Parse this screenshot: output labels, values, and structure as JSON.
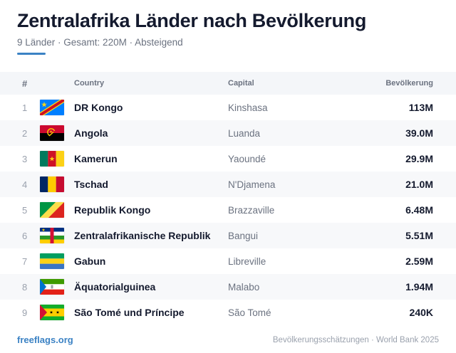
{
  "header": {
    "title": "Zentralafrika Länder nach Bevölkerung",
    "subtitle": "9 Länder · Gesamt: 220M · Absteigend"
  },
  "table": {
    "columns": {
      "rank": "#",
      "country": "Country",
      "capital": "Capital",
      "population": "Bevölkerung"
    },
    "rows": [
      {
        "rank": "1",
        "country": "DR Kongo",
        "capital": "Kinshasa",
        "population": "113M",
        "flag": "flag-cd-icon"
      },
      {
        "rank": "2",
        "country": "Angola",
        "capital": "Luanda",
        "population": "39.0M",
        "flag": "flag-ao-icon"
      },
      {
        "rank": "3",
        "country": "Kamerun",
        "capital": "Yaoundé",
        "population": "29.9M",
        "flag": "flag-cm-icon"
      },
      {
        "rank": "4",
        "country": "Tschad",
        "capital": "N'Djamena",
        "population": "21.0M",
        "flag": "flag-td-icon"
      },
      {
        "rank": "5",
        "country": "Republik Kongo",
        "capital": "Brazzaville",
        "population": "6.48M",
        "flag": "flag-cg-icon"
      },
      {
        "rank": "6",
        "country": "Zentralafrikanische Republik",
        "capital": "Bangui",
        "population": "5.51M",
        "flag": "flag-cf-icon"
      },
      {
        "rank": "7",
        "country": "Gabun",
        "capital": "Libreville",
        "population": "2.59M",
        "flag": "flag-ga-icon"
      },
      {
        "rank": "8",
        "country": "Äquatorialguinea",
        "capital": "Malabo",
        "population": "1.94M",
        "flag": "flag-gq-icon"
      },
      {
        "rank": "9",
        "country": "São Tomé und Príncipe",
        "capital": "São Tomé",
        "population": "240K",
        "flag": "flag-st-icon"
      }
    ]
  },
  "footer": {
    "brand": "freeflags.org",
    "source": "Bevölkerungsschätzungen · World Bank 2025"
  },
  "colors": {
    "accent": "#3b82c4",
    "title": "#141a2e",
    "muted": "#6b7280"
  }
}
